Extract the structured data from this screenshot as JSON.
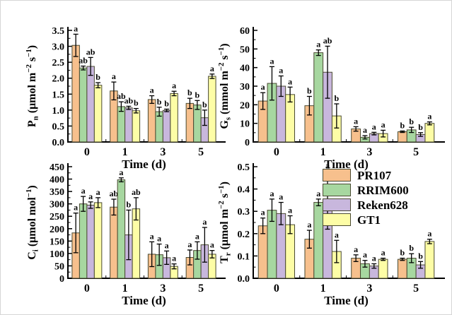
{
  "figure": {
    "background": "#ffffff",
    "bar_stroke_color": "#4a4a32",
    "error_bar_color": "#000000",
    "axis_color": "#000000"
  },
  "legend": {
    "items": [
      {
        "label": "PR107",
        "color": "#f7c08d"
      },
      {
        "label": "RRIM600",
        "color": "#a7d7a0"
      },
      {
        "label": "Reken628",
        "color": "#c8b7dd"
      },
      {
        "label": "GT1",
        "color": "#fdfda6"
      }
    ]
  },
  "chart_data": [
    {
      "id": "pn",
      "type": "bar",
      "title": "",
      "ylabel": "P_{n} (μmol m^{−2} s^{−1})",
      "xlabel": "Time (d)",
      "categories": [
        "0",
        "1",
        "3",
        "5"
      ],
      "ylim": [
        0,
        3.5
      ],
      "yticks": [
        "0.0",
        "0.5",
        "1.0",
        "1.5",
        "2.0",
        "2.5",
        "3.0",
        "3.5"
      ],
      "grid": false,
      "series": [
        {
          "name": "PR107",
          "color": "#f7c08d",
          "values": [
            3.03,
            1.6,
            1.33,
            1.21
          ],
          "errors": [
            0.35,
            0.28,
            0.12,
            0.16
          ],
          "letters": [
            "a",
            "a",
            "a",
            "b"
          ]
        },
        {
          "name": "RRIM600",
          "color": "#a7d7a0",
          "values": [
            2.32,
            1.11,
            0.95,
            1.16
          ],
          "errors": [
            0.06,
            0.15,
            0.14,
            0.14
          ],
          "letters": [
            "ab",
            "ab",
            "b",
            "b"
          ]
        },
        {
          "name": "Reken628",
          "color": "#c8b7dd",
          "values": [
            2.37,
            1.07,
            0.99,
            0.76
          ],
          "errors": [
            0.28,
            0.05,
            0.04,
            0.24
          ],
          "letters": [
            "ab",
            "ab",
            "b",
            "b"
          ]
        },
        {
          "name": "GT1",
          "color": "#fdfda6",
          "values": [
            1.78,
            0.98,
            1.52,
            2.06
          ],
          "errors": [
            0.08,
            0.07,
            0.07,
            0.07
          ],
          "letters": [
            "b",
            "b",
            "a",
            "a"
          ]
        }
      ]
    },
    {
      "id": "gs",
      "type": "bar",
      "title": "",
      "ylabel": "G_{s} (mmol m^{−2} s^{−1})",
      "xlabel": "Time (d)",
      "categories": [
        "0",
        "1",
        "3",
        "5"
      ],
      "ylim": [
        0,
        60
      ],
      "yticks": [
        "0",
        "10",
        "20",
        "30",
        "40",
        "50",
        "60"
      ],
      "grid": false,
      "series": [
        {
          "name": "PR107",
          "color": "#f7c08d",
          "values": [
            22.0,
            19.5,
            7.0,
            5.5
          ],
          "errors": [
            4.5,
            5.0,
            1.2,
            0.4
          ],
          "letters": [
            "a",
            "b",
            "a",
            "b"
          ]
        },
        {
          "name": "RRIM600",
          "color": "#a7d7a0",
          "values": [
            31.5,
            48.0,
            2.5,
            6.5
          ],
          "errors": [
            9.0,
            1.5,
            0.9,
            1.4
          ],
          "letters": [
            "a",
            "a",
            "a",
            "b"
          ]
        },
        {
          "name": "Reken628",
          "color": "#c8b7dd",
          "values": [
            30.0,
            37.5,
            4.5,
            4.0
          ],
          "errors": [
            5.5,
            14.0,
            0.7,
            1.0
          ],
          "letters": [
            "a",
            "ab",
            "a",
            "b"
          ]
        },
        {
          "name": "GT1",
          "color": "#fdfda6",
          "values": [
            25.5,
            14.0,
            4.5,
            10.0
          ],
          "errors": [
            4.0,
            6.5,
            1.8,
            0.8
          ],
          "letters": [
            "a",
            "b",
            "a",
            "a"
          ]
        }
      ]
    },
    {
      "id": "ci",
      "type": "bar",
      "title": "",
      "ylabel": "C_{i} (μmol mol^{−1})",
      "xlabel": "Time (d)",
      "categories": [
        "0",
        "1",
        "3",
        "5"
      ],
      "ylim": [
        0,
        450
      ],
      "yticks": [
        "0",
        "50",
        "100",
        "150",
        "200",
        "250",
        "300",
        "350",
        "400",
        "450"
      ],
      "grid": false,
      "series": [
        {
          "name": "PR107",
          "color": "#f7c08d",
          "values": [
            183,
            287,
            97,
            84
          ],
          "errors": [
            80,
            32,
            50,
            30
          ],
          "letters": [
            "a",
            "ab",
            "a",
            "a"
          ]
        },
        {
          "name": "RRIM600",
          "color": "#a7d7a0",
          "values": [
            300,
            397,
            95,
            112
          ],
          "errors": [
            30,
            8,
            43,
            35
          ],
          "letters": [
            "a",
            "a",
            "a",
            "a"
          ]
        },
        {
          "name": "Reken628",
          "color": "#c8b7dd",
          "values": [
            295,
            175,
            83,
            135
          ],
          "errors": [
            13,
            100,
            27,
            70
          ],
          "letters": [
            "a",
            "b",
            "a",
            "a"
          ]
        },
        {
          "name": "GT1",
          "color": "#fdfda6",
          "values": [
            305,
            280,
            48,
            97
          ],
          "errors": [
            20,
            45,
            10,
            15
          ],
          "letters": [
            "a",
            "ab",
            "a",
            "a"
          ]
        }
      ]
    },
    {
      "id": "tr",
      "type": "bar",
      "title": "",
      "ylabel": "T_{r} (μmol m^{−2} s^{−1})",
      "xlabel": "Time (d)",
      "categories": [
        "0",
        "1",
        "3",
        "5"
      ],
      "ylim": [
        0,
        0.5
      ],
      "yticks": [
        "0.0",
        "0.1",
        "0.2",
        "0.3",
        "0.4",
        "0.5"
      ],
      "grid": false,
      "series": [
        {
          "name": "PR107",
          "color": "#f7c08d",
          "values": [
            0.235,
            0.175,
            0.09,
            0.085
          ],
          "errors": [
            0.035,
            0.04,
            0.015,
            0.005
          ],
          "letters": [
            "a",
            "a",
            "a",
            "b"
          ]
        },
        {
          "name": "RRIM600",
          "color": "#a7d7a0",
          "values": [
            0.305,
            0.34,
            0.065,
            0.09
          ],
          "errors": [
            0.05,
            0.015,
            0.015,
            0.02
          ],
          "letters": [
            "a",
            "a",
            "a",
            "b"
          ]
        },
        {
          "name": "Reken628",
          "color": "#c8b7dd",
          "values": [
            0.29,
            0.35,
            0.055,
            0.06
          ],
          "errors": [
            0.05,
            0.13,
            0.01,
            0.015
          ],
          "letters": [
            "a",
            "a",
            "a",
            "b"
          ]
        },
        {
          "name": "GT1",
          "color": "#fdfda6",
          "values": [
            0.24,
            0.12,
            0.085,
            0.165
          ],
          "errors": [
            0.04,
            0.05,
            0.005,
            0.01
          ],
          "letters": [
            "a",
            "a",
            "a",
            "a"
          ]
        }
      ]
    }
  ]
}
